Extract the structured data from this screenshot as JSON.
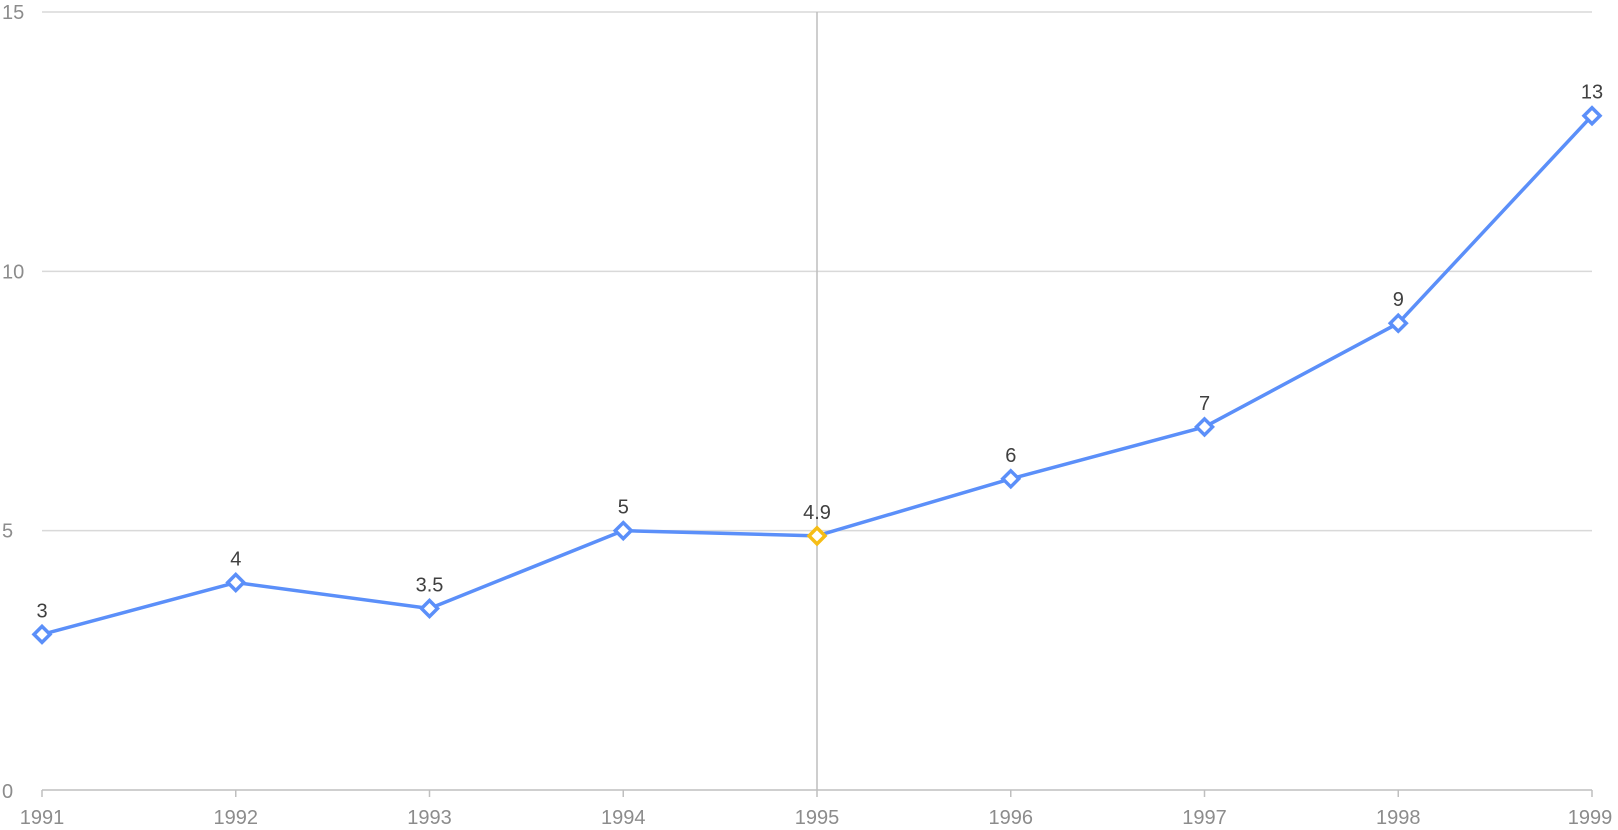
{
  "chart_data": {
    "type": "line",
    "title": "",
    "xlabel": "",
    "ylabel": "",
    "categories": [
      "1991",
      "1992",
      "1993",
      "1994",
      "1995",
      "1996",
      "1997",
      "1998",
      "1999"
    ],
    "series": [
      {
        "name": "value",
        "values": [
          3,
          4,
          3.5,
          5,
          4.9,
          6,
          7,
          9,
          13
        ],
        "labels": [
          "3",
          "4",
          "3.5",
          "5",
          "4.9",
          "6",
          "7",
          "9",
          "13"
        ]
      }
    ],
    "ylim": [
      0,
      15
    ],
    "yticks": [
      0,
      5,
      10,
      15
    ],
    "ytick_labels": [
      "0",
      "5",
      "10",
      "15"
    ],
    "grid": true,
    "highlighted_category": "1995",
    "colors": {
      "line": "#5b8ff9",
      "highlight": "#f6bd16"
    },
    "marker_icon": "diamond-icon"
  }
}
